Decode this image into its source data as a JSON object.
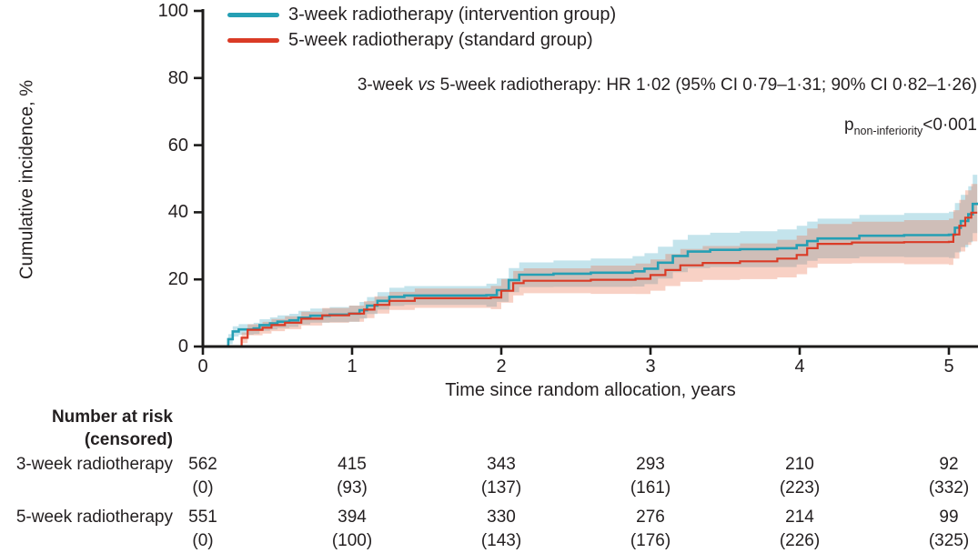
{
  "colors": {
    "teal_line": "#259fb4",
    "teal_band": "rgba(70,170,195,0.32)",
    "red_line": "#da3b26",
    "red_band": "rgba(233,103,63,0.30)",
    "axis": "#1c1b1a",
    "text": "#231f20"
  },
  "legend": {
    "items": [
      {
        "label": "3-week radiotherapy (intervention group)"
      },
      {
        "label": "5-week radiotherapy (standard group)"
      }
    ]
  },
  "annotations": {
    "hr": {
      "part1": "3-week ",
      "vs": "vs",
      "part2": " 5-week radiotherapy: HR 1·02 (95% CI 0·79–1·31; 90% CI 0·82–1·26)"
    },
    "p": {
      "prefix": "p",
      "subscript": "non-inferiority",
      "value": "<0·001"
    }
  },
  "chart_data": {
    "type": "line",
    "subtype": "step-cumulative-incidence-with-ci-bands",
    "title": "",
    "xlabel": "Time since random allocation, years",
    "ylabel": "Cumulative incidence, %",
    "xlim": [
      0,
      5.19
    ],
    "ylim": [
      0,
      100
    ],
    "xticks": [
      0,
      1,
      2,
      3,
      4,
      5
    ],
    "yticks": [
      0,
      20,
      40,
      60,
      80,
      100
    ],
    "grid": false,
    "legend_position": "top-left",
    "series": [
      {
        "name": "3-week radiotherapy (intervention group)",
        "steps": [
          [
            0,
            0
          ],
          [
            0.14,
            0
          ],
          [
            0.17,
            2.2
          ],
          [
            0.2,
            4.5
          ],
          [
            0.24,
            5.1
          ],
          [
            0.34,
            5.4
          ],
          [
            0.38,
            6.4
          ],
          [
            0.45,
            6.9
          ],
          [
            0.5,
            7.4
          ],
          [
            0.58,
            7.8
          ],
          [
            0.64,
            8.6
          ],
          [
            0.72,
            9.2
          ],
          [
            0.85,
            9.5
          ],
          [
            0.98,
            9.8
          ],
          [
            1.05,
            10.8
          ],
          [
            1.1,
            12.2
          ],
          [
            1.17,
            13.6
          ],
          [
            1.25,
            14.8
          ],
          [
            1.35,
            15.2
          ],
          [
            1.9,
            15.3
          ],
          [
            1.97,
            16.8
          ],
          [
            2.05,
            19.8
          ],
          [
            2.12,
            21.4
          ],
          [
            2.35,
            21.7
          ],
          [
            2.6,
            22.0
          ],
          [
            2.88,
            22.4
          ],
          [
            2.96,
            23.2
          ],
          [
            3.05,
            25.0
          ],
          [
            3.15,
            27.0
          ],
          [
            3.25,
            28.3
          ],
          [
            3.4,
            28.8
          ],
          [
            3.6,
            29.0
          ],
          [
            3.85,
            29.3
          ],
          [
            3.98,
            30.2
          ],
          [
            4.05,
            31.4
          ],
          [
            4.12,
            32.2
          ],
          [
            4.4,
            33.0
          ],
          [
            4.7,
            33.2
          ],
          [
            5.0,
            33.3
          ],
          [
            5.04,
            35.4
          ],
          [
            5.08,
            37.4
          ],
          [
            5.13,
            39.4
          ],
          [
            5.16,
            42.5
          ],
          [
            5.19,
            42.9
          ]
        ]
      },
      {
        "name": "5-week radiotherapy (standard group)",
        "steps": [
          [
            0,
            0
          ],
          [
            0.22,
            0
          ],
          [
            0.26,
            2.6
          ],
          [
            0.3,
            5.0
          ],
          [
            0.4,
            5.6
          ],
          [
            0.46,
            6.4
          ],
          [
            0.55,
            7.1
          ],
          [
            0.66,
            8.3
          ],
          [
            0.8,
            9.3
          ],
          [
            0.98,
            9.8
          ],
          [
            1.08,
            11.0
          ],
          [
            1.15,
            12.4
          ],
          [
            1.25,
            13.6
          ],
          [
            1.42,
            14.4
          ],
          [
            1.93,
            14.6
          ],
          [
            2.0,
            16.6
          ],
          [
            2.08,
            18.9
          ],
          [
            2.15,
            19.6
          ],
          [
            2.6,
            19.9
          ],
          [
            2.9,
            20.2
          ],
          [
            3.0,
            21.3
          ],
          [
            3.1,
            22.8
          ],
          [
            3.2,
            24.2
          ],
          [
            3.35,
            24.9
          ],
          [
            3.6,
            25.4
          ],
          [
            3.85,
            26.2
          ],
          [
            3.98,
            27.3
          ],
          [
            4.05,
            29.3
          ],
          [
            4.12,
            30.6
          ],
          [
            4.35,
            31.0
          ],
          [
            4.7,
            31.1
          ],
          [
            5.0,
            31.2
          ],
          [
            5.03,
            33.4
          ],
          [
            5.07,
            36.0
          ],
          [
            5.11,
            38.4
          ],
          [
            5.15,
            39.9
          ],
          [
            5.19,
            39.9
          ]
        ]
      }
    ]
  },
  "risk_table": {
    "header_line1": "Number at risk",
    "header_line2": "(censored)",
    "time_points": [
      0,
      1,
      2,
      3,
      4,
      5
    ],
    "rows": [
      {
        "label": "3-week radiotherapy",
        "at_risk": [
          "562",
          "415",
          "343",
          "293",
          "210",
          "92"
        ],
        "censored": [
          "(0)",
          "(93)",
          "(137)",
          "(161)",
          "(223)",
          "(332)"
        ]
      },
      {
        "label": "5-week radiotherapy",
        "at_risk": [
          "551",
          "394",
          "330",
          "276",
          "214",
          "99"
        ],
        "censored": [
          "(0)",
          "(100)",
          "(143)",
          "(176)",
          "(226)",
          "(325)"
        ]
      }
    ]
  }
}
